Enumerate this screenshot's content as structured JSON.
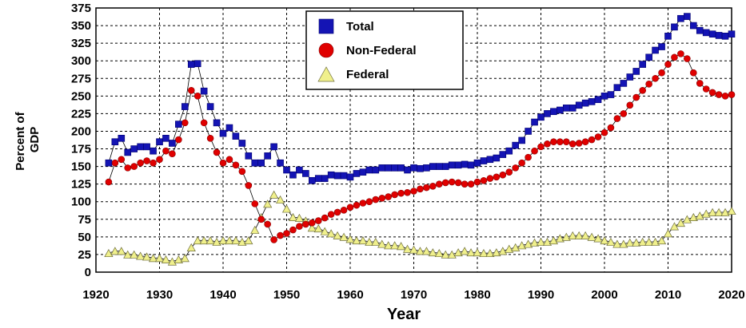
{
  "chart_data": {
    "type": "scatter",
    "xlabel": "Year",
    "ylabel": "Percent of GDP",
    "xlim": [
      1920,
      2020
    ],
    "ylim": [
      0,
      375
    ],
    "x_ticks": [
      1920,
      1930,
      1940,
      1950,
      1960,
      1970,
      1980,
      1990,
      2000,
      2010,
      2020
    ],
    "y_ticks": [
      0,
      25,
      50,
      75,
      100,
      125,
      150,
      175,
      200,
      225,
      250,
      275,
      300,
      325,
      350,
      375
    ],
    "grid": true,
    "legend_position": "top-center",
    "series": [
      {
        "name": "Total",
        "color": "#1414b4",
        "marker": "square",
        "points": [
          [
            1922,
            155
          ],
          [
            1923,
            185
          ],
          [
            1924,
            190
          ],
          [
            1925,
            170
          ],
          [
            1926,
            175
          ],
          [
            1927,
            178
          ],
          [
            1928,
            178
          ],
          [
            1929,
            172
          ],
          [
            1930,
            185
          ],
          [
            1931,
            190
          ],
          [
            1932,
            183
          ],
          [
            1933,
            210
          ],
          [
            1934,
            235
          ],
          [
            1935,
            295
          ],
          [
            1936,
            296
          ],
          [
            1937,
            257
          ],
          [
            1938,
            235
          ],
          [
            1939,
            212
          ],
          [
            1940,
            197
          ],
          [
            1941,
            205
          ],
          [
            1942,
            193
          ],
          [
            1943,
            183
          ],
          [
            1944,
            165
          ],
          [
            1945,
            155
          ],
          [
            1946,
            155
          ],
          [
            1947,
            165
          ],
          [
            1948,
            178
          ],
          [
            1949,
            155
          ],
          [
            1950,
            145
          ],
          [
            1951,
            138
          ],
          [
            1952,
            145
          ],
          [
            1953,
            140
          ],
          [
            1954,
            130
          ],
          [
            1955,
            133
          ],
          [
            1956,
            133
          ],
          [
            1957,
            138
          ],
          [
            1958,
            137
          ],
          [
            1959,
            137
          ],
          [
            1960,
            135
          ],
          [
            1961,
            140
          ],
          [
            1962,
            142
          ],
          [
            1963,
            145
          ],
          [
            1964,
            145
          ],
          [
            1965,
            148
          ],
          [
            1966,
            148
          ],
          [
            1967,
            148
          ],
          [
            1968,
            148
          ],
          [
            1969,
            145
          ],
          [
            1970,
            148
          ],
          [
            1971,
            147
          ],
          [
            1972,
            148
          ],
          [
            1973,
            150
          ],
          [
            1974,
            150
          ],
          [
            1975,
            150
          ],
          [
            1976,
            152
          ],
          [
            1977,
            152
          ],
          [
            1978,
            153
          ],
          [
            1979,
            152
          ],
          [
            1980,
            155
          ],
          [
            1981,
            158
          ],
          [
            1982,
            160
          ],
          [
            1983,
            162
          ],
          [
            1984,
            167
          ],
          [
            1985,
            172
          ],
          [
            1986,
            180
          ],
          [
            1987,
            187
          ],
          [
            1988,
            200
          ],
          [
            1989,
            213
          ],
          [
            1990,
            220
          ],
          [
            1991,
            225
          ],
          [
            1992,
            228
          ],
          [
            1993,
            230
          ],
          [
            1994,
            233
          ],
          [
            1995,
            233
          ],
          [
            1996,
            237
          ],
          [
            1997,
            240
          ],
          [
            1998,
            242
          ],
          [
            1999,
            245
          ],
          [
            2000,
            250
          ],
          [
            2001,
            252
          ],
          [
            2002,
            262
          ],
          [
            2003,
            268
          ],
          [
            2004,
            277
          ],
          [
            2005,
            285
          ],
          [
            2006,
            295
          ],
          [
            2007,
            305
          ],
          [
            2008,
            315
          ],
          [
            2009,
            320
          ],
          [
            2010,
            335
          ],
          [
            2011,
            348
          ],
          [
            2012,
            360
          ],
          [
            2013,
            363
          ],
          [
            2014,
            350
          ],
          [
            2015,
            343
          ],
          [
            2016,
            340
          ],
          [
            2017,
            338
          ],
          [
            2018,
            336
          ],
          [
            2019,
            335
          ],
          [
            2020,
            338
          ]
        ]
      },
      {
        "name": "Non-Federal",
        "color": "#e00000",
        "marker": "circle",
        "points": [
          [
            1922,
            128
          ],
          [
            1923,
            155
          ],
          [
            1924,
            160
          ],
          [
            1925,
            148
          ],
          [
            1926,
            150
          ],
          [
            1927,
            155
          ],
          [
            1928,
            158
          ],
          [
            1929,
            155
          ],
          [
            1930,
            160
          ],
          [
            1931,
            172
          ],
          [
            1932,
            168
          ],
          [
            1933,
            188
          ],
          [
            1934,
            212
          ],
          [
            1935,
            258
          ],
          [
            1936,
            250
          ],
          [
            1937,
            212
          ],
          [
            1938,
            190
          ],
          [
            1939,
            170
          ],
          [
            1940,
            155
          ],
          [
            1941,
            160
          ],
          [
            1942,
            152
          ],
          [
            1943,
            143
          ],
          [
            1944,
            123
          ],
          [
            1945,
            97
          ],
          [
            1946,
            75
          ],
          [
            1947,
            68
          ],
          [
            1948,
            46
          ],
          [
            1949,
            52
          ],
          [
            1950,
            55
          ],
          [
            1951,
            60
          ],
          [
            1952,
            65
          ],
          [
            1953,
            68
          ],
          [
            1954,
            70
          ],
          [
            1955,
            73
          ],
          [
            1956,
            77
          ],
          [
            1957,
            82
          ],
          [
            1958,
            85
          ],
          [
            1959,
            88
          ],
          [
            1960,
            92
          ],
          [
            1961,
            95
          ],
          [
            1962,
            98
          ],
          [
            1963,
            100
          ],
          [
            1964,
            103
          ],
          [
            1965,
            105
          ],
          [
            1966,
            107
          ],
          [
            1967,
            110
          ],
          [
            1968,
            112
          ],
          [
            1969,
            113
          ],
          [
            1970,
            115
          ],
          [
            1971,
            118
          ],
          [
            1972,
            120
          ],
          [
            1973,
            122
          ],
          [
            1974,
            125
          ],
          [
            1975,
            127
          ],
          [
            1976,
            128
          ],
          [
            1977,
            127
          ],
          [
            1978,
            125
          ],
          [
            1979,
            125
          ],
          [
            1980,
            128
          ],
          [
            1981,
            130
          ],
          [
            1982,
            133
          ],
          [
            1983,
            135
          ],
          [
            1984,
            138
          ],
          [
            1985,
            142
          ],
          [
            1986,
            148
          ],
          [
            1987,
            155
          ],
          [
            1988,
            163
          ],
          [
            1989,
            172
          ],
          [
            1990,
            178
          ],
          [
            1991,
            182
          ],
          [
            1992,
            185
          ],
          [
            1993,
            185
          ],
          [
            1994,
            185
          ],
          [
            1995,
            182
          ],
          [
            1996,
            183
          ],
          [
            1997,
            185
          ],
          [
            1998,
            188
          ],
          [
            1999,
            192
          ],
          [
            2000,
            198
          ],
          [
            2001,
            205
          ],
          [
            2002,
            218
          ],
          [
            2003,
            225
          ],
          [
            2004,
            237
          ],
          [
            2005,
            248
          ],
          [
            2006,
            258
          ],
          [
            2007,
            267
          ],
          [
            2008,
            275
          ],
          [
            2009,
            283
          ],
          [
            2010,
            295
          ],
          [
            2011,
            305
          ],
          [
            2012,
            310
          ],
          [
            2013,
            303
          ],
          [
            2014,
            283
          ],
          [
            2015,
            268
          ],
          [
            2016,
            260
          ],
          [
            2017,
            255
          ],
          [
            2018,
            252
          ],
          [
            2019,
            250
          ],
          [
            2020,
            252
          ]
        ]
      },
      {
        "name": "Federal",
        "color": "#f0f08c",
        "marker": "triangle",
        "points": [
          [
            1922,
            27
          ],
          [
            1923,
            30
          ],
          [
            1924,
            30
          ],
          [
            1925,
            25
          ],
          [
            1926,
            25
          ],
          [
            1927,
            23
          ],
          [
            1928,
            22
          ],
          [
            1929,
            20
          ],
          [
            1930,
            20
          ],
          [
            1931,
            18
          ],
          [
            1932,
            15
          ],
          [
            1933,
            18
          ],
          [
            1934,
            20
          ],
          [
            1935,
            35
          ],
          [
            1936,
            45
          ],
          [
            1937,
            45
          ],
          [
            1938,
            45
          ],
          [
            1939,
            43
          ],
          [
            1940,
            45
          ],
          [
            1941,
            45
          ],
          [
            1942,
            45
          ],
          [
            1943,
            43
          ],
          [
            1944,
            45
          ],
          [
            1945,
            60
          ],
          [
            1946,
            78
          ],
          [
            1947,
            97
          ],
          [
            1948,
            110
          ],
          [
            1949,
            103
          ],
          [
            1950,
            90
          ],
          [
            1951,
            78
          ],
          [
            1952,
            77
          ],
          [
            1953,
            73
          ],
          [
            1954,
            63
          ],
          [
            1955,
            62
          ],
          [
            1956,
            58
          ],
          [
            1957,
            55
          ],
          [
            1958,
            52
          ],
          [
            1959,
            50
          ],
          [
            1960,
            47
          ],
          [
            1961,
            45
          ],
          [
            1962,
            45
          ],
          [
            1963,
            43
          ],
          [
            1964,
            43
          ],
          [
            1965,
            40
          ],
          [
            1966,
            38
          ],
          [
            1967,
            38
          ],
          [
            1968,
            37
          ],
          [
            1969,
            33
          ],
          [
            1970,
            32
          ],
          [
            1971,
            30
          ],
          [
            1972,
            30
          ],
          [
            1973,
            28
          ],
          [
            1974,
            27
          ],
          [
            1975,
            25
          ],
          [
            1976,
            25
          ],
          [
            1977,
            28
          ],
          [
            1978,
            30
          ],
          [
            1979,
            28
          ],
          [
            1980,
            28
          ],
          [
            1981,
            27
          ],
          [
            1982,
            27
          ],
          [
            1983,
            28
          ],
          [
            1984,
            30
          ],
          [
            1985,
            33
          ],
          [
            1986,
            35
          ],
          [
            1987,
            38
          ],
          [
            1988,
            40
          ],
          [
            1989,
            42
          ],
          [
            1990,
            43
          ],
          [
            1991,
            43
          ],
          [
            1992,
            45
          ],
          [
            1993,
            48
          ],
          [
            1994,
            50
          ],
          [
            1995,
            52
          ],
          [
            1996,
            52
          ],
          [
            1997,
            52
          ],
          [
            1998,
            50
          ],
          [
            1999,
            48
          ],
          [
            2000,
            45
          ],
          [
            2001,
            43
          ],
          [
            2002,
            40
          ],
          [
            2003,
            40
          ],
          [
            2004,
            42
          ],
          [
            2005,
            42
          ],
          [
            2006,
            43
          ],
          [
            2007,
            43
          ],
          [
            2008,
            43
          ],
          [
            2009,
            45
          ],
          [
            2010,
            55
          ],
          [
            2011,
            65
          ],
          [
            2012,
            70
          ],
          [
            2013,
            75
          ],
          [
            2014,
            78
          ],
          [
            2015,
            80
          ],
          [
            2016,
            83
          ],
          [
            2017,
            85
          ],
          [
            2018,
            85
          ],
          [
            2019,
            85
          ],
          [
            2020,
            87
          ]
        ]
      }
    ]
  }
}
